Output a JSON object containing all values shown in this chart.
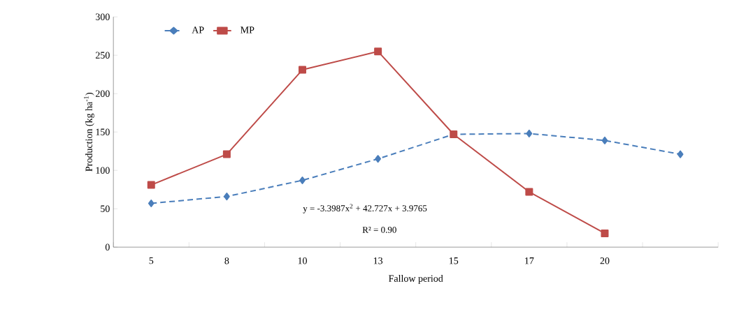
{
  "chart_data": {
    "type": "line",
    "xlabel": "Fallow period",
    "ylabel": "Production (kg ha$^{-1}$)",
    "categories": [
      "5",
      "8",
      "10",
      "13",
      "15",
      "17",
      "20",
      null
    ],
    "series": [
      {
        "name": "AP",
        "color": "#4a7ebb",
        "marker": "diamond",
        "line_style": "dashed",
        "values": [
          57,
          66,
          87,
          115,
          147,
          148,
          139,
          121
        ]
      },
      {
        "name": "MP",
        "color": "#be4b48",
        "marker": "square",
        "line_style": "solid",
        "values": [
          81,
          121,
          231,
          255,
          147,
          72,
          18,
          null
        ]
      }
    ],
    "ylim": [
      0,
      300
    ],
    "yticks": [
      0,
      50,
      100,
      150,
      200,
      250,
      300
    ],
    "grid": false,
    "legend": "top left",
    "annotations": [
      "y = -3.3987x$^{2}$ + 42.727x + 3.9765",
      "R² = 0.90"
    ]
  }
}
